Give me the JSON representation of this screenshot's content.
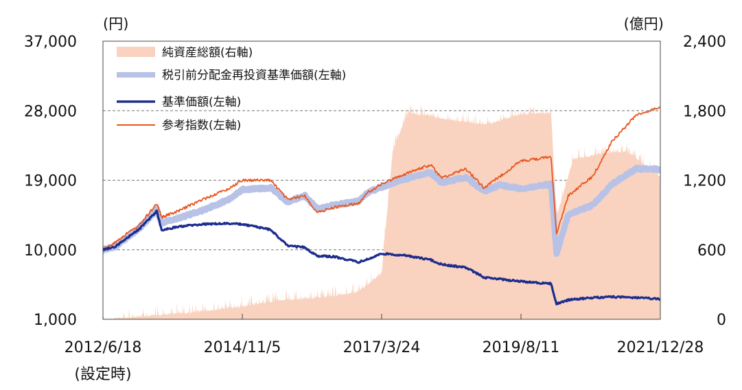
{
  "chart_data": {
    "type": "line",
    "left_unit": "(円)",
    "right_unit": "(億円)",
    "yleft_ticks": [
      1000,
      10000,
      19000,
      28000,
      37000
    ],
    "yleft_tick_labels": [
      "1,000",
      "10,000",
      "19,000",
      "28,000",
      "37,000"
    ],
    "yleft_range": [
      1000,
      37000
    ],
    "yright_ticks": [
      0,
      600,
      1200,
      1800,
      2400
    ],
    "yright_tick_labels": [
      "0",
      "600",
      "1,200",
      "1,800",
      "2,400"
    ],
    "yright_range": [
      0,
      2400
    ],
    "x_ticks": [
      "2012-06-18",
      "2014-11-05",
      "2017-03-24",
      "2019-08-11",
      "2021-12-28"
    ],
    "x_tick_labels": [
      "2012/6/18",
      "2014/11/5",
      "2017/3/24",
      "2019/8/11",
      "2021/12/28"
    ],
    "x_first_sublabel": "(設定時)",
    "grid": "horizontal dashed",
    "legend_position": "top-left",
    "colors": {
      "net_assets": "#f9d3c0",
      "reinvested_nav": "#b8c2e6",
      "nav": "#1d2d8c",
      "reference_index": "#e8561e"
    },
    "series": [
      {
        "name": "純資産総額(右軸)",
        "axis": "right",
        "style": "area",
        "x": [
          "2012-06-18",
          "2012-10-01",
          "2013-06-01",
          "2014-01-01",
          "2014-11-05",
          "2015-06-01",
          "2016-01-01",
          "2016-06-01",
          "2016-11-01",
          "2017-01-15",
          "2017-03-24",
          "2017-06-01",
          "2017-09-01",
          "2018-01-01",
          "2018-06-01",
          "2019-01-01",
          "2019-08-11",
          "2020-02-15",
          "2020-03-20",
          "2020-07-01",
          "2021-01-01",
          "2021-06-01",
          "2021-12-28"
        ],
        "values": [
          0,
          10,
          40,
          60,
          110,
          160,
          180,
          200,
          240,
          320,
          400,
          1450,
          1780,
          1760,
          1720,
          1680,
          1770,
          1780,
          880,
          1380,
          1430,
          1450,
          1230
        ]
      },
      {
        "name": "税引前分配金再投資基準価額(左軸)",
        "axis": "left",
        "style": "thick-line",
        "x": [
          "2012-06-18",
          "2012-09-01",
          "2013-02-01",
          "2013-05-20",
          "2013-06-20",
          "2013-10-01",
          "2014-03-01",
          "2014-08-01",
          "2014-11-05",
          "2015-05-01",
          "2015-08-15",
          "2015-12-01",
          "2016-02-15",
          "2016-06-01",
          "2016-11-01",
          "2017-01-01",
          "2017-03-24",
          "2017-08-01",
          "2018-01-25",
          "2018-04-01",
          "2018-09-01",
          "2018-12-25",
          "2019-04-01",
          "2019-08-11",
          "2020-02-15",
          "2020-03-20",
          "2020-06-01",
          "2020-11-01",
          "2021-03-01",
          "2021-08-01",
          "2021-12-28"
        ],
        "values": [
          10000,
          10400,
          12800,
          15200,
          13500,
          14100,
          15100,
          16400,
          17800,
          18000,
          16200,
          17000,
          15300,
          15800,
          16300,
          17500,
          18100,
          19100,
          20000,
          18700,
          19400,
          17600,
          18400,
          17900,
          18500,
          9500,
          14500,
          15800,
          18500,
          20500,
          20400
        ]
      },
      {
        "name": "基準価額(左軸)",
        "axis": "left",
        "style": "line",
        "x": [
          "2012-06-18",
          "2012-09-01",
          "2013-02-01",
          "2013-05-20",
          "2013-06-20",
          "2013-10-01",
          "2014-03-01",
          "2014-08-01",
          "2014-11-05",
          "2015-05-01",
          "2015-08-15",
          "2015-12-01",
          "2016-02-15",
          "2016-06-01",
          "2016-11-01",
          "2017-01-01",
          "2017-03-24",
          "2017-08-01",
          "2018-01-25",
          "2018-04-01",
          "2018-09-01",
          "2018-12-25",
          "2019-04-01",
          "2019-08-11",
          "2020-02-15",
          "2020-03-20",
          "2020-06-01",
          "2020-11-01",
          "2021-03-01",
          "2021-08-01",
          "2021-12-28"
        ],
        "values": [
          10000,
          10400,
          12700,
          15000,
          12500,
          13000,
          13300,
          13400,
          13300,
          12600,
          10500,
          10300,
          9200,
          9100,
          8400,
          8800,
          9500,
          9300,
          8700,
          8100,
          7700,
          6400,
          6200,
          5900,
          5600,
          3000,
          3500,
          3800,
          3900,
          3800,
          3600
        ]
      },
      {
        "name": "参考指数(左軸)",
        "axis": "left",
        "style": "thin-line",
        "x": [
          "2012-06-18",
          "2012-09-01",
          "2013-02-01",
          "2013-05-20",
          "2013-06-20",
          "2013-10-01",
          "2014-03-01",
          "2014-08-01",
          "2014-11-05",
          "2015-05-01",
          "2015-08-15",
          "2015-12-01",
          "2016-02-15",
          "2016-06-01",
          "2016-11-01",
          "2017-01-01",
          "2017-03-24",
          "2017-08-01",
          "2018-01-25",
          "2018-04-01",
          "2018-09-01",
          "2018-12-25",
          "2019-04-01",
          "2019-08-11",
          "2020-02-15",
          "2020-03-20",
          "2020-06-01",
          "2020-11-01",
          "2021-03-01",
          "2021-08-01",
          "2021-12-28"
        ],
        "values": [
          10000,
          11000,
          13200,
          16000,
          14200,
          15000,
          16500,
          17800,
          19000,
          19000,
          16500,
          17000,
          14800,
          15500,
          16000,
          17500,
          18500,
          19700,
          21000,
          19300,
          20500,
          18000,
          19500,
          21500,
          22000,
          12000,
          17000,
          19500,
          24000,
          27500,
          28400
        ]
      }
    ]
  }
}
